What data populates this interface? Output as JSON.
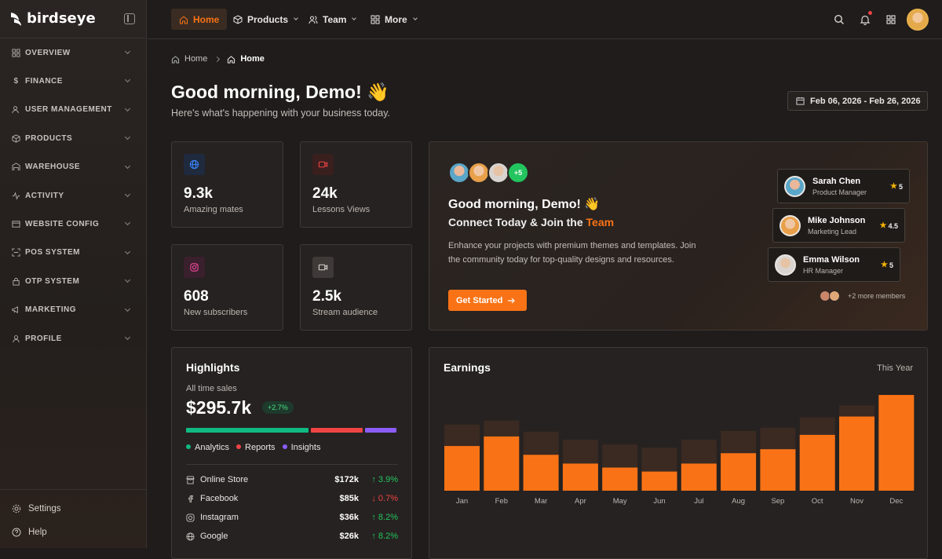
{
  "app": {
    "name": "birdseye"
  },
  "sidebar": {
    "items": [
      {
        "label": "OVERVIEW",
        "icon": "grid-icon"
      },
      {
        "label": "FINANCE",
        "icon": "dollar-icon"
      },
      {
        "label": "USER MANAGEMENT",
        "icon": "users-icon"
      },
      {
        "label": "PRODUCTS",
        "icon": "box-icon"
      },
      {
        "label": "WAREHOUSE",
        "icon": "warehouse-icon"
      },
      {
        "label": "ACTIVITY",
        "icon": "activity-icon"
      },
      {
        "label": "WEBSITE CONFIG",
        "icon": "window-icon"
      },
      {
        "label": "POS SYSTEM",
        "icon": "scan-icon"
      },
      {
        "label": "OTP SYSTEM",
        "icon": "lock-icon"
      },
      {
        "label": "MARKETING",
        "icon": "megaphone-icon"
      },
      {
        "label": "PROFILE",
        "icon": "user-icon"
      }
    ],
    "footer": {
      "settings": "Settings",
      "help": "Help"
    }
  },
  "topnav": {
    "home": "Home",
    "products": "Products",
    "team": "Team",
    "more": "More"
  },
  "breadcrumb": {
    "root": "Home",
    "current": "Home"
  },
  "header": {
    "greeting": "Good morning, Demo! 👋",
    "subtitle": "Here's what's happening with your business today.",
    "date_range": "Feb 06, 2026 - Feb 26, 2026"
  },
  "stats": [
    {
      "value": "9.3k",
      "label": "Amazing mates",
      "icon": "globe-icon",
      "color": "#3b82f6"
    },
    {
      "value": "24k",
      "label": "Lessons Views",
      "icon": "video-icon",
      "color": "#ef4444"
    },
    {
      "value": "608",
      "label": "New subscribers",
      "icon": "instagram-icon",
      "color": "#ec4899"
    },
    {
      "value": "2.5k",
      "label": "Stream audience",
      "icon": "camera-icon",
      "color": "#d9d4d0"
    }
  ],
  "hero": {
    "plus_count": "+5",
    "title": "Good morning, Demo! 👋",
    "connect": "Connect Today & Join the",
    "connect_accent": "Team",
    "description": "Enhance your projects with premium themes and templates. Join the community today for top-quality designs and resources.",
    "cta": "Get Started",
    "members": [
      {
        "name": "Sarah Chen",
        "role": "Product Manager",
        "rating": "5"
      },
      {
        "name": "Mike Johnson",
        "role": "Marketing Lead",
        "rating": "4.5"
      },
      {
        "name": "Emma Wilson",
        "role": "HR Manager",
        "rating": "5"
      }
    ],
    "more_members": "+2 more members"
  },
  "highlights": {
    "title": "Highlights",
    "subtitle": "All time sales",
    "total": "$295.7k",
    "change": "+2.7%",
    "legend": [
      "Analytics",
      "Reports",
      "Insights"
    ],
    "legend_colors": [
      "#10b981",
      "#ef4444",
      "#8b5cf6"
    ],
    "bar_shares": [
      0.59,
      0.25,
      0.15
    ],
    "rows": [
      {
        "name": "Online Store",
        "amount": "$172k",
        "change": "↑ 3.9%",
        "dir": "up",
        "icon": "store-icon"
      },
      {
        "name": "Facebook",
        "amount": "$85k",
        "change": "↓ 0.7%",
        "dir": "down",
        "icon": "facebook-icon"
      },
      {
        "name": "Instagram",
        "amount": "$36k",
        "change": "↑ 8.2%",
        "dir": "up",
        "icon": "instagram-icon"
      },
      {
        "name": "Google",
        "amount": "$26k",
        "change": "↑ 8.2%",
        "dir": "up",
        "icon": "google-icon"
      }
    ]
  },
  "earnings": {
    "title": "Earnings",
    "period": "This Year"
  },
  "chart_data": {
    "type": "bar",
    "categories": [
      "Jan",
      "Feb",
      "Mar",
      "Apr",
      "May",
      "Jun",
      "Jul",
      "Aug",
      "Sep",
      "Oct",
      "Nov",
      "Dec"
    ],
    "series": [
      {
        "values": [
          56,
          68,
          45,
          34,
          29,
          24,
          34,
          47,
          52,
          70,
          93,
          120
        ]
      },
      {
        "values": [
          83,
          88,
          74,
          64,
          58,
          54,
          64,
          75,
          79,
          92,
          107,
          120
        ]
      }
    ],
    "colors": [
      "#f97316",
      "#3a2a22"
    ],
    "ylim": [
      0,
      125
    ]
  }
}
